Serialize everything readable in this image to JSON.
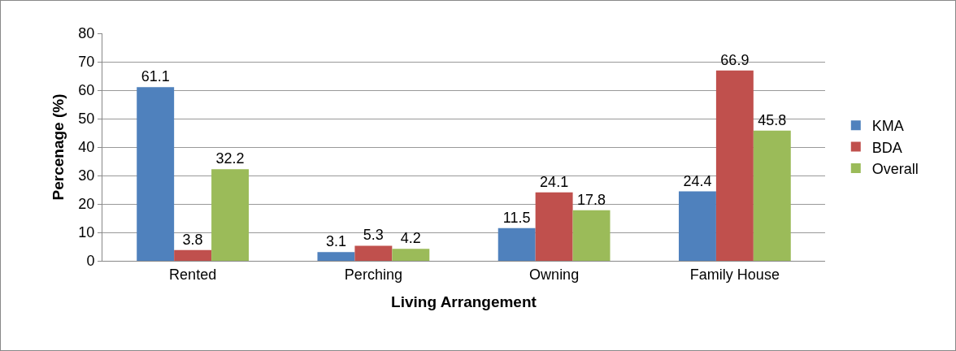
{
  "chart_data": {
    "type": "bar",
    "xlabel": "Living Arrangement",
    "ylabel": "Percenage (%)",
    "categories": [
      "Rented",
      "Perching",
      "Owning",
      "Family House"
    ],
    "series": [
      {
        "name": "KMA",
        "color": "#4f81bd",
        "values": [
          61.1,
          3.1,
          11.5,
          24.4
        ]
      },
      {
        "name": "BDA",
        "color": "#c0504d",
        "values": [
          3.8,
          5.3,
          24.1,
          66.9
        ]
      },
      {
        "name": "Overall",
        "color": "#9bbb59",
        "values": [
          32.2,
          4.2,
          17.8,
          45.8
        ]
      }
    ],
    "ylim": [
      0,
      80
    ],
    "yticks": [
      0,
      10,
      20,
      30,
      40,
      50,
      60,
      70,
      80
    ],
    "grid": "y",
    "legend": "right",
    "data_labels": true
  }
}
